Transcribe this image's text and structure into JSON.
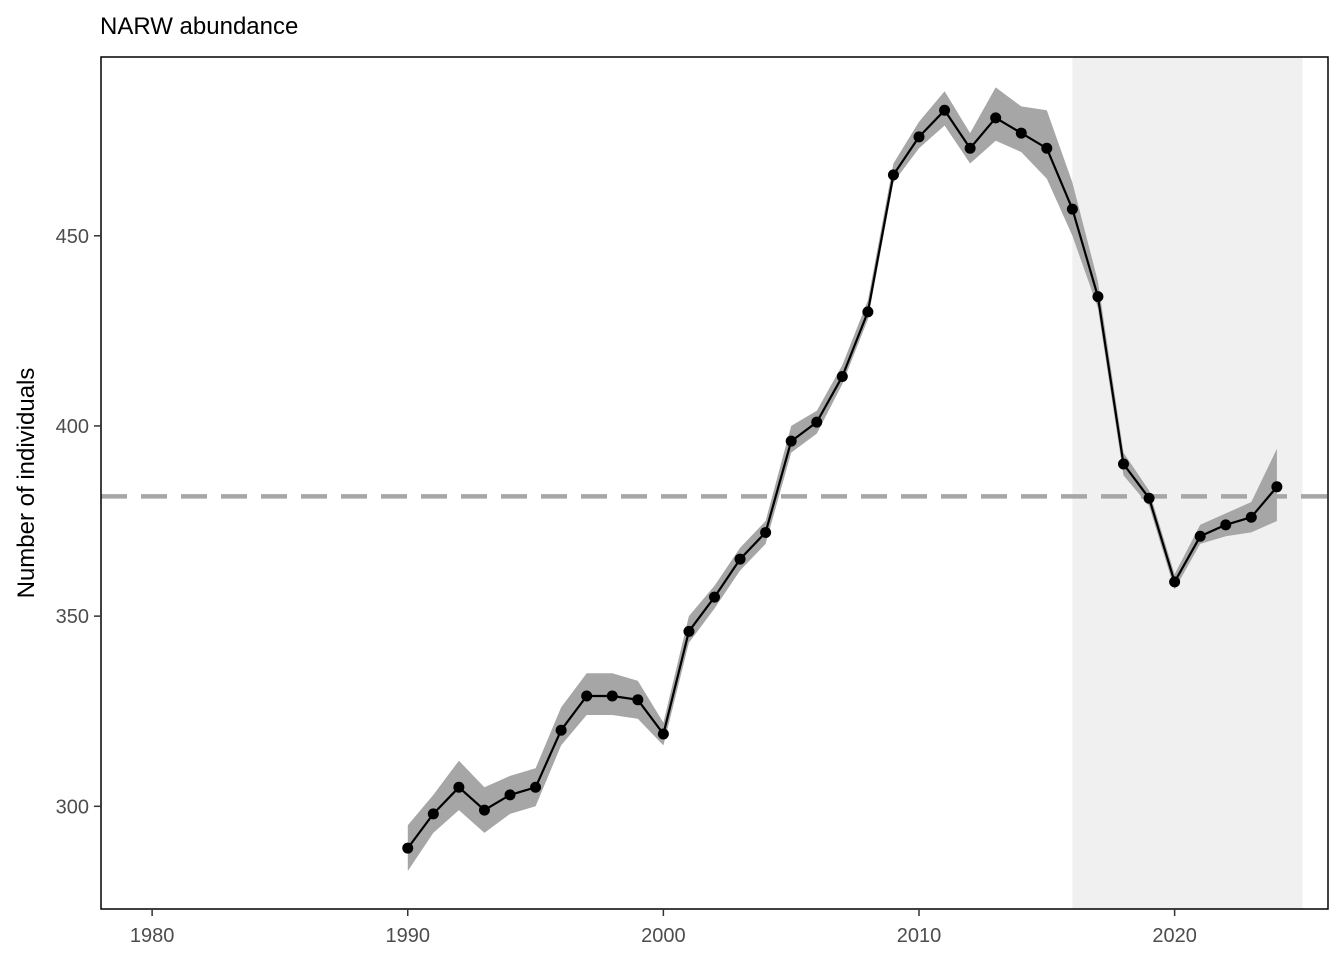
{
  "chart_data": {
    "type": "line",
    "title": "NARW abundance",
    "xlabel": "",
    "ylabel": "Number of individuals",
    "xlim": [
      1978,
      2026
    ],
    "ylim": [
      273,
      497
    ],
    "x_ticks": [
      "1980",
      "1990",
      "2000",
      "2010",
      "2020"
    ],
    "y_ticks": [
      "300",
      "350",
      "400",
      "450"
    ],
    "grid": false,
    "series": [
      {
        "x": [
          1990,
          1991,
          1992,
          1993,
          1994,
          1995,
          1996,
          1997,
          1998,
          1999,
          2000,
          2001,
          2002,
          2003,
          2004,
          2005,
          2006,
          2007,
          2008,
          2009,
          2010,
          2011,
          2012,
          2013,
          2014,
          2015,
          2016,
          2017,
          2018,
          2019,
          2020,
          2021,
          2022,
          2023,
          2024
        ],
        "y": [
          289,
          298,
          305,
          299,
          303,
          305,
          320,
          329,
          329,
          328,
          319,
          346,
          355,
          365,
          372,
          396,
          401,
          413,
          430,
          466,
          476,
          483,
          473,
          481,
          477,
          473,
          457,
          434,
          390,
          381,
          359,
          371,
          374,
          376,
          384
        ],
        "lower": [
          283,
          293,
          299,
          293,
          298,
          300,
          316,
          324,
          324,
          323,
          316,
          343,
          352,
          362,
          369,
          393,
          398,
          411,
          428,
          464,
          473,
          479,
          469,
          475,
          472,
          465,
          450,
          431,
          387,
          379,
          357,
          369,
          371,
          372,
          375
        ],
        "upper": [
          295,
          303,
          312,
          305,
          308,
          310,
          326,
          335,
          335,
          333,
          322,
          350,
          358,
          368,
          375,
          400,
          404,
          416,
          433,
          469,
          480,
          488,
          477,
          489,
          484,
          483,
          464,
          438,
          393,
          383,
          361,
          374,
          377,
          380,
          394
        ]
      }
    ],
    "reference_line": {
      "y": 381.5,
      "color": "#a6a6a6",
      "style": "dashed"
    },
    "shaded_region": {
      "x": [
        2016,
        2025
      ],
      "color": "#f0f0f0"
    },
    "colors": {
      "line": "#000000",
      "ribbon": "#a6a6a6",
      "panel_border": "#000000"
    }
  }
}
